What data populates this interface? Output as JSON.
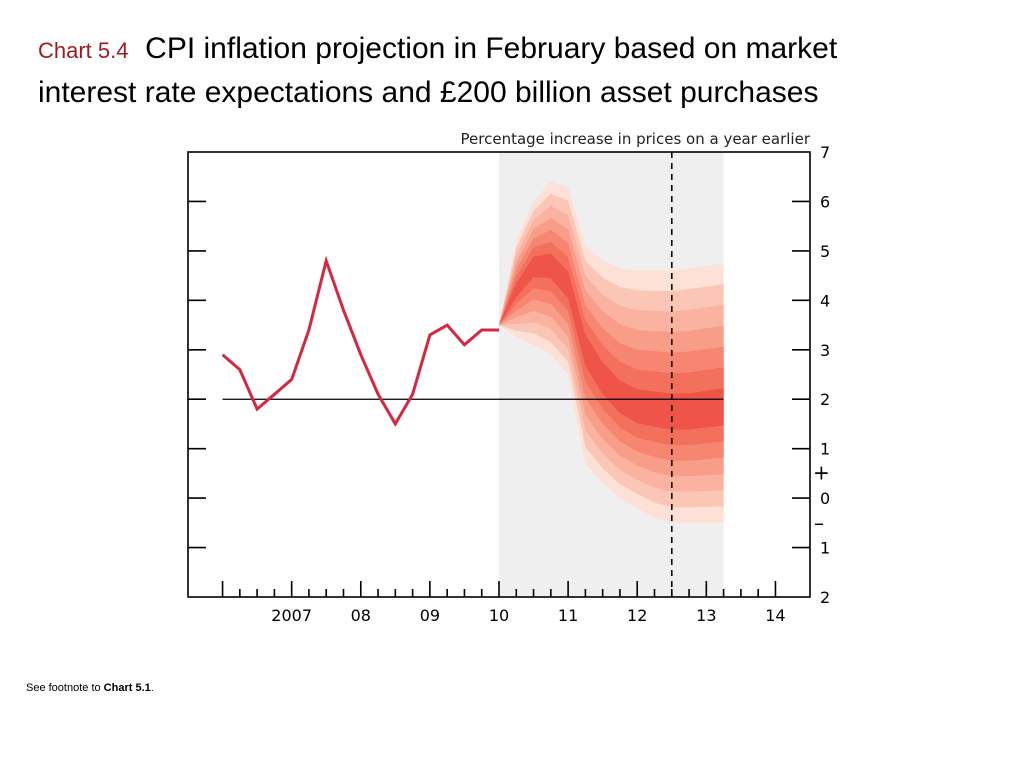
{
  "slide": {
    "chart_number": "Chart 5.4",
    "title": "CPI inflation projection in February based on market interest rate expectations and £200 billion asset purchases",
    "footnote_prefix": "See footnote to ",
    "footnote_ref": "Chart 5.1",
    "footnote_suffix": "."
  },
  "chart_data": {
    "type": "line",
    "subtitle": "Percentage increase in prices on a year earlier",
    "x_labels": [
      {
        "x": 2007.0,
        "label": "2007"
      },
      {
        "x": 2008.0,
        "label": "08"
      },
      {
        "x": 2009.0,
        "label": "09"
      },
      {
        "x": 2010.0,
        "label": "10"
      },
      {
        "x": 2011.0,
        "label": "11"
      },
      {
        "x": 2012.0,
        "label": "12"
      },
      {
        "x": 2013.0,
        "label": "13"
      },
      {
        "x": 2014.0,
        "label": "14"
      }
    ],
    "xlim": [
      2005.5,
      2014.5
    ],
    "ylim": [
      -2,
      7
    ],
    "y_ticks": [
      {
        "value": 7,
        "label": "7"
      },
      {
        "value": 6,
        "label": "6"
      },
      {
        "value": 5,
        "label": "5"
      },
      {
        "value": 4,
        "label": "4"
      },
      {
        "value": 3,
        "label": "3"
      },
      {
        "value": 2,
        "label": "2"
      },
      {
        "value": 1,
        "label": "1"
      },
      {
        "value": 0,
        "label": "0"
      },
      {
        "value": -1,
        "label": "1"
      },
      {
        "value": -2,
        "label": "2"
      }
    ],
    "plus_sign": "+",
    "minus_sign": "–",
    "target_line": 2,
    "history_series": {
      "x": [
        2006.0,
        2006.25,
        2006.5,
        2006.75,
        2007.0,
        2007.25,
        2007.5,
        2007.75,
        2008.0,
        2008.25,
        2008.5,
        2008.75,
        2009.0,
        2009.25,
        2009.5,
        2009.75,
        2010.0
      ],
      "y": [
        2.9,
        2.6,
        1.8,
        2.1,
        2.4,
        3.4,
        4.8,
        3.8,
        2.9,
        2.1,
        1.5,
        2.1,
        3.3,
        3.5,
        3.1,
        3.4,
        3.4
      ]
    },
    "projection_start": 2010.0,
    "projection_end": 2013.25,
    "forecast_horizon_line": 2012.5,
    "fan": {
      "x": [
        2010.0,
        2010.25,
        2010.5,
        2010.75,
        2011.0,
        2011.25,
        2011.5,
        2011.75,
        2012.0,
        2012.25,
        2012.5,
        2012.75,
        2013.0,
        2013.25
      ],
      "outer_upper": [
        3.5,
        5.2,
        6.0,
        6.4,
        6.3,
        5.1,
        4.8,
        4.65,
        4.6,
        4.6,
        4.6,
        4.65,
        4.7,
        4.75
      ],
      "outer_lower": [
        3.5,
        3.25,
        3.1,
        2.9,
        2.5,
        0.7,
        0.3,
        0.0,
        -0.2,
        -0.4,
        -0.5,
        -0.5,
        -0.5,
        -0.5
      ],
      "central": [
        3.5,
        4.2,
        4.7,
        4.7,
        4.3,
        3.0,
        2.4,
        2.0,
        1.8,
        1.75,
        1.7,
        1.7,
        1.75,
        1.8
      ],
      "band_colors": [
        "#fde0d6",
        "#fbc6b6",
        "#f9b3a0",
        "#f89d88",
        "#f68672",
        "#f3705d",
        "#ee5447"
      ]
    },
    "colors": {
      "history_line": "#d7263d",
      "projection_shade": "#efefef",
      "axis": "#000000"
    }
  }
}
